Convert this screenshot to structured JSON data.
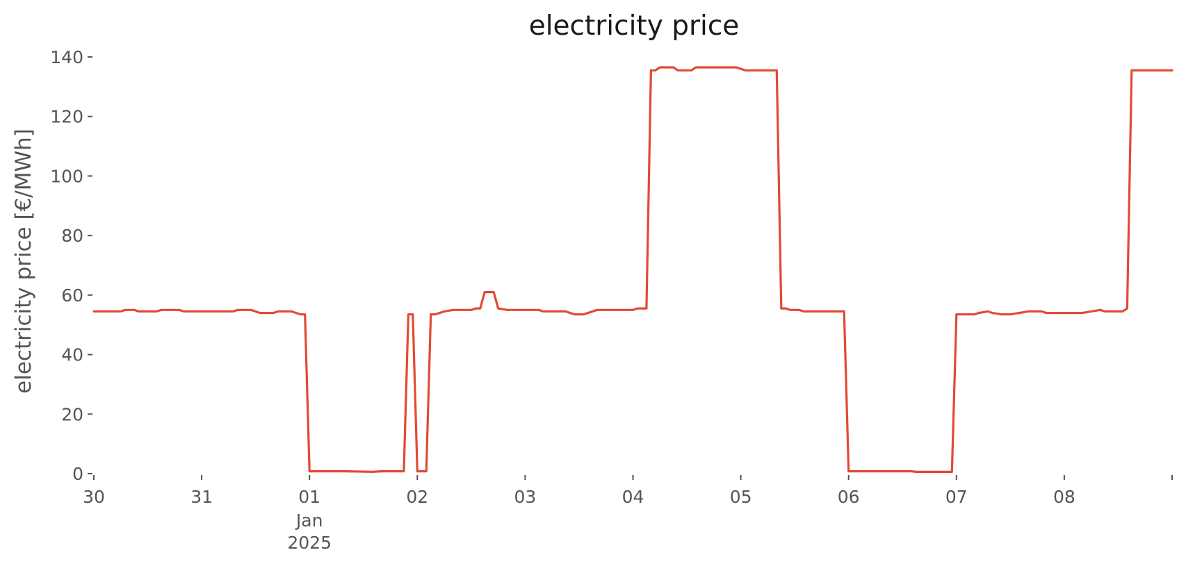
{
  "chart_data": {
    "type": "line",
    "title": "electricity price",
    "xlabel": "",
    "ylabel": "electricity price [€/MWh]",
    "xlim": [
      "2024-12-30 00:00",
      "2025-01-09 00:00"
    ],
    "ylim": [
      0,
      140
    ],
    "grid": false,
    "legend": "none",
    "x_ticks": [
      {
        "x": "2024-12-30",
        "label": "30"
      },
      {
        "x": "2024-12-31",
        "label": "31"
      },
      {
        "x": "2025-01-01",
        "label": "01",
        "sub1": "Jan",
        "sub2": "2025"
      },
      {
        "x": "2025-01-02",
        "label": "02"
      },
      {
        "x": "2025-01-03",
        "label": "03"
      },
      {
        "x": "2025-01-04",
        "label": "04"
      },
      {
        "x": "2025-01-05",
        "label": "05"
      },
      {
        "x": "2025-01-06",
        "label": "06"
      },
      {
        "x": "2025-01-07",
        "label": "07"
      },
      {
        "x": "2025-01-08",
        "label": "08"
      },
      {
        "x": "2025-01-09",
        "label": ""
      }
    ],
    "y_ticks": [
      0,
      20,
      40,
      60,
      80,
      100,
      120,
      140
    ],
    "colors": {
      "line": "#E24A33",
      "axis": "#555555"
    },
    "series": [
      {
        "points": [
          [
            "2024-12-30 00:00",
            54.5
          ],
          [
            "2024-12-30 06:00",
            54.5
          ],
          [
            "2024-12-30 07:00",
            55.0
          ],
          [
            "2024-12-30 09:00",
            55.0
          ],
          [
            "2024-12-30 10:00",
            54.5
          ],
          [
            "2024-12-30 14:00",
            54.5
          ],
          [
            "2024-12-30 15:00",
            55.0
          ],
          [
            "2024-12-30 19:00",
            55.0
          ],
          [
            "2024-12-30 20:00",
            54.5
          ],
          [
            "2024-12-31 07:00",
            54.5
          ],
          [
            "2024-12-31 08:00",
            55.0
          ],
          [
            "2024-12-31 11:00",
            55.0
          ],
          [
            "2024-12-31 13:00",
            54.0
          ],
          [
            "2024-12-31 16:00",
            54.0
          ],
          [
            "2024-12-31 17:00",
            54.5
          ],
          [
            "2024-12-31 20:00",
            54.5
          ],
          [
            "2024-12-31 21:00",
            54.0
          ],
          [
            "2024-12-31 22:00",
            53.5
          ],
          [
            "2024-12-31 23:00",
            53.5
          ],
          [
            "2025-01-01 00:00",
            0.8
          ],
          [
            "2025-01-01 08:00",
            0.8
          ],
          [
            "2025-01-01 14:00",
            0.6
          ],
          [
            "2025-01-01 16:00",
            0.8
          ],
          [
            "2025-01-01 21:00",
            0.8
          ],
          [
            "2025-01-01 22:00",
            53.5
          ],
          [
            "2025-01-01 23:00",
            53.5
          ],
          [
            "2025-01-02 00:00",
            0.8
          ],
          [
            "2025-01-02 02:00",
            0.8
          ],
          [
            "2025-01-02 03:00",
            53.5
          ],
          [
            "2025-01-02 04:00",
            53.5
          ],
          [
            "2025-01-02 06:00",
            54.5
          ],
          [
            "2025-01-02 08:00",
            55.0
          ],
          [
            "2025-01-02 12:00",
            55.0
          ],
          [
            "2025-01-02 13:00",
            55.5
          ],
          [
            "2025-01-02 14:00",
            55.5
          ],
          [
            "2025-01-02 15:00",
            61.0
          ],
          [
            "2025-01-02 17:00",
            61.0
          ],
          [
            "2025-01-02 18:00",
            55.5
          ],
          [
            "2025-01-02 20:00",
            55.0
          ],
          [
            "2025-01-03 03:00",
            55.0
          ],
          [
            "2025-01-03 04:00",
            54.5
          ],
          [
            "2025-01-03 09:00",
            54.5
          ],
          [
            "2025-01-03 10:00",
            54.0
          ],
          [
            "2025-01-03 11:00",
            53.5
          ],
          [
            "2025-01-03 13:00",
            53.5
          ],
          [
            "2025-01-03 16:00",
            55.0
          ],
          [
            "2025-01-04 00:00",
            55.0
          ],
          [
            "2025-01-04 01:00",
            55.5
          ],
          [
            "2025-01-04 03:00",
            55.5
          ],
          [
            "2025-01-04 04:00",
            135.5
          ],
          [
            "2025-01-04 05:00",
            135.5
          ],
          [
            "2025-01-04 06:00",
            136.5
          ],
          [
            "2025-01-04 09:00",
            136.5
          ],
          [
            "2025-01-04 10:00",
            135.5
          ],
          [
            "2025-01-04 13:00",
            135.5
          ],
          [
            "2025-01-04 14:00",
            136.5
          ],
          [
            "2025-01-04 23:00",
            136.5
          ],
          [
            "2025-01-05 01:00",
            135.5
          ],
          [
            "2025-01-05 08:00",
            135.5
          ],
          [
            "2025-01-05 09:00",
            55.5
          ],
          [
            "2025-01-05 10:00",
            55.5
          ],
          [
            "2025-01-05 11:00",
            55.0
          ],
          [
            "2025-01-05 13:00",
            55.0
          ],
          [
            "2025-01-05 14:00",
            54.5
          ],
          [
            "2025-01-05 23:00",
            54.5
          ],
          [
            "2025-01-06 00:00",
            0.8
          ],
          [
            "2025-01-06 14:00",
            0.8
          ],
          [
            "2025-01-06 15:00",
            0.6
          ],
          [
            "2025-01-06 23:00",
            0.6
          ],
          [
            "2025-01-07 00:00",
            53.5
          ],
          [
            "2025-01-07 04:00",
            53.5
          ],
          [
            "2025-01-07 05:00",
            54.0
          ],
          [
            "2025-01-07 07:00",
            54.5
          ],
          [
            "2025-01-07 08:00",
            54.0
          ],
          [
            "2025-01-07 10:00",
            53.5
          ],
          [
            "2025-01-07 12:00",
            53.5
          ],
          [
            "2025-01-07 14:00",
            54.0
          ],
          [
            "2025-01-07 16:00",
            54.5
          ],
          [
            "2025-01-07 19:00",
            54.5
          ],
          [
            "2025-01-07 20:00",
            54.0
          ],
          [
            "2025-01-08 04:00",
            54.0
          ],
          [
            "2025-01-08 06:00",
            54.5
          ],
          [
            "2025-01-08 08:00",
            55.0
          ],
          [
            "2025-01-08 09:00",
            54.5
          ],
          [
            "2025-01-08 13:00",
            54.5
          ],
          [
            "2025-01-08 14:00",
            55.5
          ],
          [
            "2025-01-08 15:00",
            135.5
          ],
          [
            "2025-01-09 00:00",
            135.5
          ]
        ]
      }
    ]
  }
}
